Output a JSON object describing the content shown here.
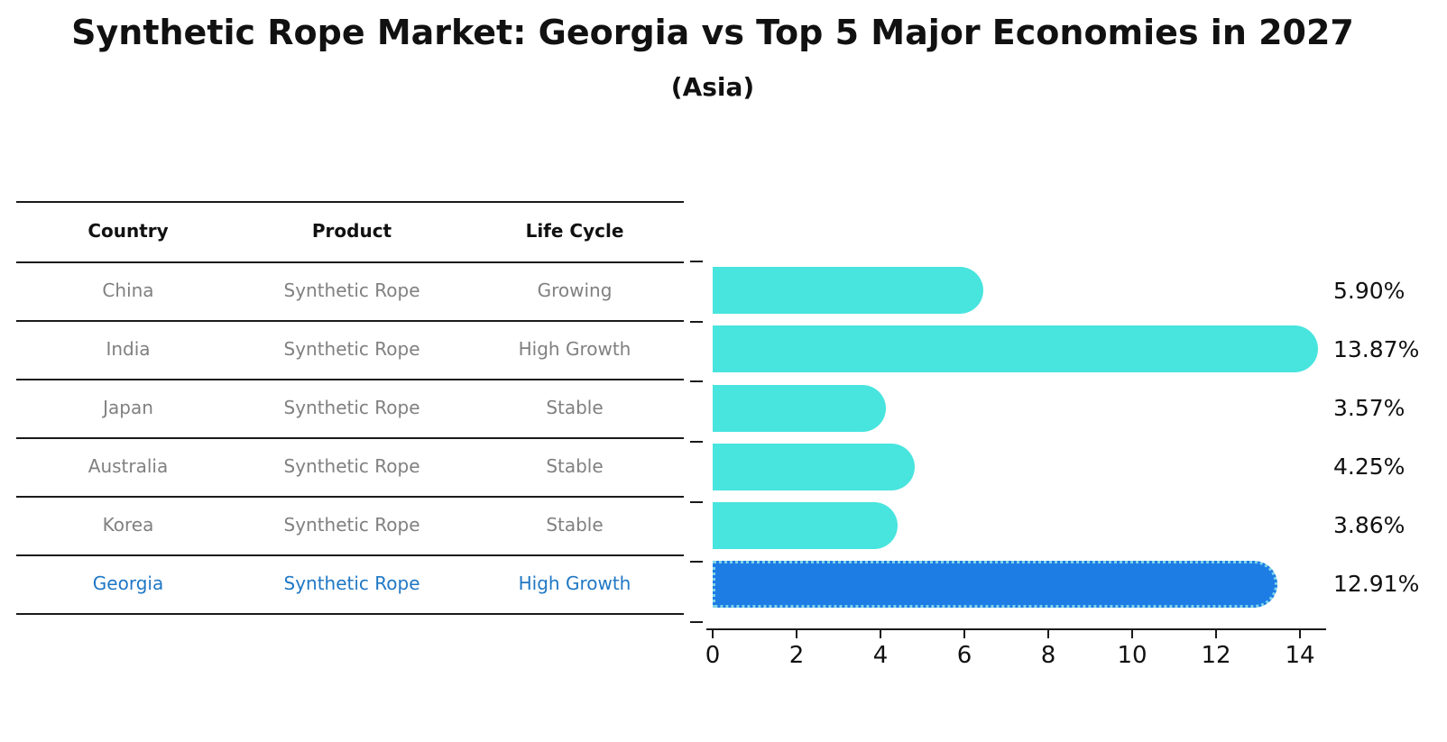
{
  "title": "Synthetic Rope Market: Georgia vs Top 5 Major Economies in 2027",
  "subtitle": "(Asia)",
  "table": {
    "headers": [
      "Country",
      "Product",
      "Life Cycle"
    ],
    "rows": [
      {
        "country": "China",
        "product": "Synthetic Rope",
        "life_cycle": "Growing",
        "highlight": false
      },
      {
        "country": "India",
        "product": "Synthetic Rope",
        "life_cycle": "High Growth",
        "highlight": false
      },
      {
        "country": "Japan",
        "product": "Synthetic Rope",
        "life_cycle": "Stable",
        "highlight": false
      },
      {
        "country": "Australia",
        "product": "Synthetic Rope",
        "life_cycle": "Stable",
        "highlight": false
      },
      {
        "country": "Korea",
        "product": "Synthetic Rope",
        "life_cycle": "Stable",
        "highlight": false
      },
      {
        "country": "Georgia",
        "product": "Synthetic Rope",
        "life_cycle": "High Growth",
        "highlight": true
      }
    ]
  },
  "chart_data": {
    "type": "bar",
    "orientation": "horizontal",
    "title": "Synthetic Rope Market: Georgia vs Top 5 Major Economies in 2027",
    "subtitle": "(Asia)",
    "categories": [
      "China",
      "India",
      "Japan",
      "Australia",
      "Korea",
      "Georgia"
    ],
    "values": [
      5.9,
      13.87,
      3.57,
      4.25,
      3.86,
      12.91
    ],
    "labels": [
      "5.90%",
      "13.87%",
      "3.57%",
      "4.25%",
      "3.86%",
      "12.91%"
    ],
    "unit": "percent CAGR-style value shown as %",
    "xlabel": "",
    "ylabel": "",
    "xlim": [
      0,
      14.6
    ],
    "xticks": [
      0,
      2,
      4,
      6,
      8,
      10,
      12,
      14
    ],
    "grid": false,
    "legend": false,
    "bar_color": "#48E4DE",
    "highlight_color": "#1E7DE5",
    "highlight_index": 5,
    "highlight_edge_style": "dotted",
    "highlight_edge_color": "#7FD4E8"
  },
  "colors": {
    "background": "#ffffff",
    "text_primary": "#111111",
    "text_muted": "#808080",
    "text_highlight": "#1F77C4",
    "bar": "#48E4DE",
    "bar_highlight": "#1E7DE5",
    "axis": "#1a1a1a"
  }
}
